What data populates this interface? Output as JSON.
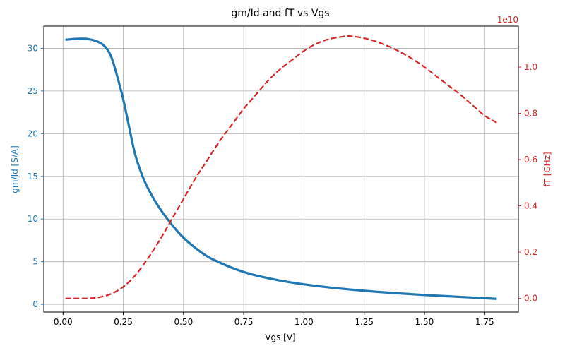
{
  "chart_data": {
    "type": "line",
    "title": "gm/Id and fT vs Vgs",
    "xlabel": "Vgs [V]",
    "ylabel_left": "gm/Id [S/A]",
    "ylabel_right": "fT [GHz]",
    "right_axis_offset_label": "1e10",
    "xlim": [
      -0.08,
      1.89
    ],
    "ylim_left": [
      -0.9,
      32.6
    ],
    "ylim_right": [
      -0.059,
      1.177
    ],
    "x_ticks": [
      0.0,
      0.25,
      0.5,
      0.75,
      1.0,
      1.25,
      1.5,
      1.75
    ],
    "x_tick_labels": [
      "0.00",
      "0.25",
      "0.50",
      "0.75",
      "1.00",
      "1.25",
      "1.50",
      "1.75"
    ],
    "y_left_ticks": [
      0,
      5,
      10,
      15,
      20,
      25,
      30
    ],
    "y_left_tick_labels": [
      "0",
      "5",
      "10",
      "15",
      "20",
      "25",
      "30"
    ],
    "y_right_ticks": [
      0.0,
      0.2,
      0.4,
      0.6,
      0.8,
      1.0
    ],
    "y_right_tick_labels": [
      "0.0",
      "0.2",
      "0.4",
      "0.6",
      "0.8",
      "1.0"
    ],
    "grid": true,
    "colors": {
      "left": "#1f77b4",
      "right": "#d62728",
      "grid": "#b0b0b0",
      "axis": "#000000"
    },
    "series": [
      {
        "axis": "left",
        "style": "solid",
        "x": [
          0.01,
          0.05,
          0.1,
          0.15,
          0.18,
          0.2,
          0.22,
          0.25,
          0.28,
          0.3,
          0.33,
          0.36,
          0.4,
          0.45,
          0.5,
          0.55,
          0.6,
          0.65,
          0.7,
          0.75,
          0.8,
          0.9,
          1.0,
          1.1,
          1.2,
          1.3,
          1.4,
          1.5,
          1.6,
          1.7,
          1.8
        ],
        "values": [
          31.0,
          31.1,
          31.1,
          30.7,
          30.0,
          29.0,
          27.2,
          24.0,
          20.0,
          17.5,
          15.0,
          13.2,
          11.3,
          9.4,
          7.8,
          6.6,
          5.6,
          4.9,
          4.3,
          3.8,
          3.4,
          2.8,
          2.35,
          2.0,
          1.72,
          1.48,
          1.28,
          1.1,
          0.95,
          0.8,
          0.65
        ]
      },
      {
        "axis": "right",
        "style": "dashed",
        "x": [
          0.01,
          0.1,
          0.15,
          0.2,
          0.25,
          0.3,
          0.35,
          0.4,
          0.45,
          0.5,
          0.55,
          0.6,
          0.65,
          0.7,
          0.75,
          0.8,
          0.85,
          0.9,
          0.95,
          1.0,
          1.05,
          1.1,
          1.15,
          1.18,
          1.2,
          1.25,
          1.3,
          1.35,
          1.4,
          1.45,
          1.5,
          1.55,
          1.6,
          1.65,
          1.7,
          1.75,
          1.8
        ],
        "values": [
          0.0,
          0.0,
          0.005,
          0.02,
          0.05,
          0.1,
          0.17,
          0.25,
          0.34,
          0.43,
          0.52,
          0.6,
          0.68,
          0.75,
          0.82,
          0.88,
          0.94,
          0.99,
          1.03,
          1.07,
          1.1,
          1.12,
          1.13,
          1.134,
          1.133,
          1.125,
          1.11,
          1.09,
          1.065,
          1.035,
          1.0,
          0.96,
          0.92,
          0.88,
          0.835,
          0.79,
          0.76
        ]
      }
    ]
  }
}
